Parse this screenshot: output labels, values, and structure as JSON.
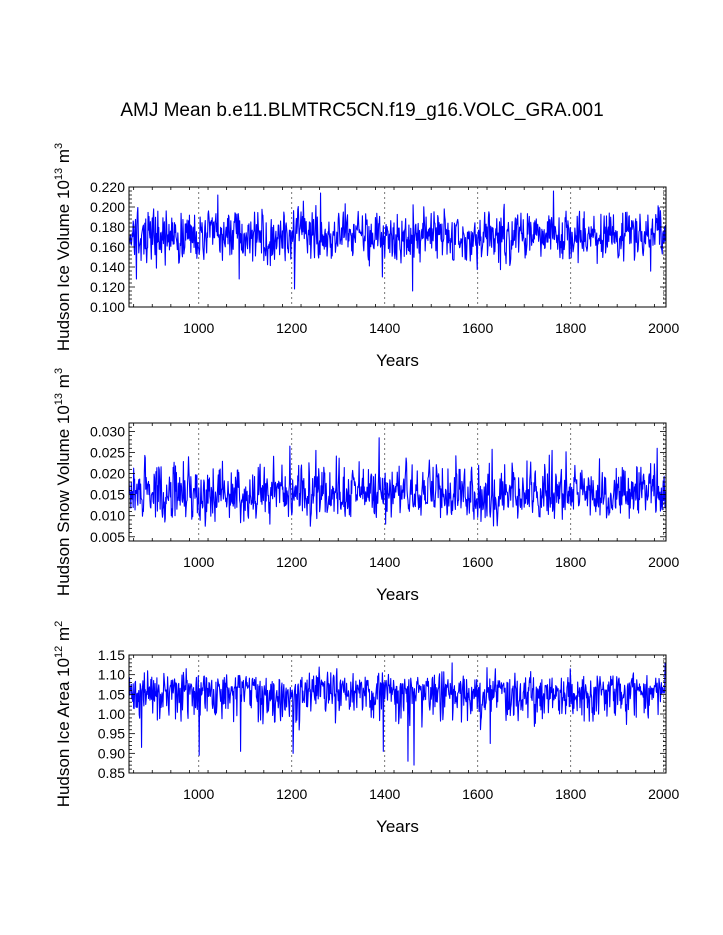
{
  "title": "AMJ Mean b.e11.BLMTRC5CN.f19_g16.VOLC_GRA.001",
  "colors": {
    "line": "#0000ff",
    "axis": "#000000",
    "grid": "#555555"
  },
  "chart_data": [
    {
      "type": "line",
      "name": "ice-volume",
      "ylabel_prefix": "Hudson Ice Volume 10",
      "ylabel_exp": "13",
      "ylabel_unit": " m",
      "ylabel_unit_exp": "3",
      "xlabel": "Years",
      "xlim": [
        850,
        2005
      ],
      "ylim": [
        0.1,
        0.22
      ],
      "yticks": [
        0.1,
        0.12,
        0.14,
        0.16,
        0.18,
        0.2,
        0.22
      ],
      "ytick_labels": [
        "0.100",
        "0.120",
        "0.140",
        "0.160",
        "0.180",
        "0.200",
        "0.220"
      ],
      "xticks": [
        1000,
        1200,
        1400,
        1600,
        1800,
        2000
      ],
      "xtick_labels": [
        "1000",
        "1200",
        "1400",
        "1600",
        "1800",
        "2000"
      ],
      "vlines": [
        1000,
        1200,
        1400,
        1600,
        1800,
        2000
      ],
      "series": {
        "name": "Hudson Ice Volume",
        "x_start": 850,
        "x_end": 2005,
        "mean": 0.171,
        "std": 0.0125,
        "min": 0.116,
        "max": 0.216,
        "seed": 13,
        "spikes": [
          [
            1262,
            0.214
          ],
          [
            1763,
            0.216
          ],
          [
            1041,
            0.212
          ],
          [
            1460,
            0.116
          ],
          [
            1206,
            0.118
          ],
          [
            866,
            0.128
          ],
          [
            1087,
            0.128
          ],
          [
            1395,
            0.13
          ]
        ]
      }
    },
    {
      "type": "line",
      "name": "snow-volume",
      "ylabel_prefix": "Hudson Snow Volume 10",
      "ylabel_exp": "13",
      "ylabel_unit": " m",
      "ylabel_unit_exp": "3",
      "xlabel": "Years",
      "xlim": [
        850,
        2005
      ],
      "ylim": [
        0.004,
        0.032
      ],
      "yticks": [
        0.005,
        0.01,
        0.015,
        0.02,
        0.025,
        0.03
      ],
      "ytick_labels": [
        "0.005",
        "0.010",
        "0.015",
        "0.020",
        "0.025",
        "0.030"
      ],
      "xticks": [
        1000,
        1200,
        1400,
        1600,
        1800,
        2000
      ],
      "xtick_labels": [
        "1000",
        "1200",
        "1400",
        "1600",
        "1800",
        "2000"
      ],
      "vlines": [
        1000,
        1200,
        1400,
        1600,
        1800,
        2000
      ],
      "series": {
        "name": "Hudson Snow Volume",
        "x_start": 850,
        "x_end": 2005,
        "mean": 0.0148,
        "std": 0.0027,
        "min": 0.0075,
        "max": 0.0285,
        "seed": 29,
        "skew": 1.2,
        "spikes": [
          [
            1388,
            0.0285
          ],
          [
            1196,
            0.0265
          ],
          [
            1252,
            0.0255
          ],
          [
            1986,
            0.026
          ],
          [
            1760,
            0.0255
          ],
          [
            1402,
            0.008
          ]
        ]
      }
    },
    {
      "type": "line",
      "name": "ice-area",
      "ylabel_prefix": "Hudson Ice Area 10",
      "ylabel_exp": "12",
      "ylabel_unit": " m",
      "ylabel_unit_exp": "2",
      "xlabel": "Years",
      "xlim": [
        850,
        2005
      ],
      "ylim": [
        0.85,
        1.15
      ],
      "yticks": [
        0.85,
        0.9,
        0.95,
        1.0,
        1.05,
        1.1,
        1.15
      ],
      "ytick_labels": [
        "0.85",
        "0.90",
        "0.95",
        "1.00",
        "1.05",
        "1.10",
        "1.15"
      ],
      "xticks": [
        1000,
        1200,
        1400,
        1600,
        1800,
        2000
      ],
      "xtick_labels": [
        "1000",
        "1200",
        "1400",
        "1600",
        "1800",
        "2000"
      ],
      "vlines": [
        1000,
        1200,
        1400,
        1600,
        1800,
        2000
      ],
      "series": {
        "name": "Hudson Ice Area",
        "x_start": 850,
        "x_end": 2005,
        "mean": 1.058,
        "std": 0.022,
        "min": 0.87,
        "max": 1.13,
        "seed": 71,
        "skew": -1.6,
        "spikes": [
          [
            1463,
            0.87
          ],
          [
            1450,
            0.88
          ],
          [
            1001,
            0.895
          ],
          [
            1203,
            0.9
          ],
          [
            1090,
            0.905
          ],
          [
            1397,
            0.905
          ],
          [
            877,
            0.915
          ],
          [
            1545,
            1.13
          ],
          [
            2003,
            1.13
          ],
          [
            1627,
            0.925
          ]
        ]
      }
    }
  ]
}
